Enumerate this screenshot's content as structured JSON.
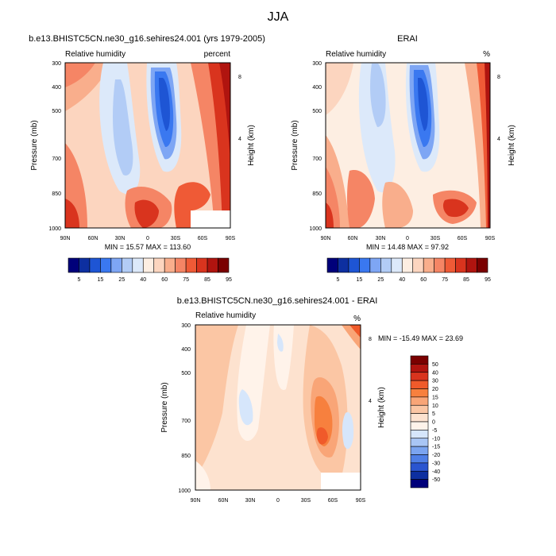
{
  "figure_title": "JJA",
  "chart_data": [
    {
      "type": "heatmap",
      "title": "b.e13.BHISTC5CN.ne30_g16.sehires24.001 (yrs 1979-2005)",
      "variable": "Relative humidity",
      "units": "percent",
      "ylabel": "Pressure (mb)",
      "y2label": "Height (km)",
      "x_ticks": [
        "90N",
        "60N",
        "30N",
        "0",
        "30S",
        "60S",
        "90S"
      ],
      "y_ticks": [
        "300",
        "400",
        "500",
        "700",
        "850",
        "1000"
      ],
      "y2_ticks": [
        "8",
        "4"
      ],
      "stats": "MIN = 15.57   MAX = 113.60",
      "colorbar_labels": [
        "5",
        "15",
        "25",
        "40",
        "60",
        "75",
        "85",
        "95"
      ],
      "colorbar_colors": [
        "#00007a",
        "#0d2fa0",
        "#1e55d4",
        "#3a78f0",
        "#7ea6f4",
        "#b2ccf6",
        "#dce9fa",
        "#fdeee2",
        "#fcd5bf",
        "#f9ae8c",
        "#f58565",
        "#ef5a36",
        "#d9341e",
        "#b0140f",
        "#7a0000"
      ]
    },
    {
      "type": "heatmap",
      "title": "ERAI",
      "variable": "Relative humidity",
      "units": "%",
      "ylabel": "Pressure (mb)",
      "y2label": "Height (km)",
      "x_ticks": [
        "90N",
        "60N",
        "30N",
        "0",
        "30S",
        "60S",
        "90S"
      ],
      "y_ticks": [
        "300",
        "400",
        "500",
        "700",
        "850",
        "1000"
      ],
      "y2_ticks": [
        "8",
        "4"
      ],
      "stats": "MIN = 14.48   MAX = 97.92",
      "colorbar_labels": [
        "5",
        "15",
        "25",
        "40",
        "60",
        "75",
        "85",
        "95"
      ],
      "colorbar_colors": [
        "#00007a",
        "#0d2fa0",
        "#1e55d4",
        "#3a78f0",
        "#7ea6f4",
        "#b2ccf6",
        "#dce9fa",
        "#fdeee2",
        "#fcd5bf",
        "#f9ae8c",
        "#f58565",
        "#ef5a36",
        "#d9341e",
        "#b0140f",
        "#7a0000"
      ]
    },
    {
      "type": "heatmap",
      "title": "b.e13.BHISTC5CN.ne30_g16.sehires24.001 - ERAI",
      "variable": "Relative humidity",
      "units": "%",
      "ylabel": "Pressure (mb)",
      "y2label": "Height (km)",
      "x_ticks": [
        "90N",
        "60N",
        "30N",
        "0",
        "30S",
        "60S",
        "90S"
      ],
      "y_ticks": [
        "300",
        "400",
        "500",
        "700",
        "850",
        "1000"
      ],
      "y2_ticks": [
        "8",
        "4"
      ],
      "stats": "MIN = -15.49  MAX =  23.69",
      "colorbar_labels": [
        "50",
        "40",
        "30",
        "20",
        "15",
        "10",
        "5",
        "0",
        "-5",
        "-10",
        "-15",
        "-20",
        "-30",
        "-40",
        "-50"
      ],
      "colorbar_colors": [
        "#7a0000",
        "#b0140f",
        "#d9341e",
        "#f05a2a",
        "#f7803e",
        "#f9a577",
        "#fbc6a4",
        "#fde2cf",
        "#fff3ea",
        "#d6e6fb",
        "#a9c6f5",
        "#7ba4f0",
        "#4f7fe6",
        "#2a55d0",
        "#0d2fa0",
        "#00007a"
      ]
    }
  ]
}
